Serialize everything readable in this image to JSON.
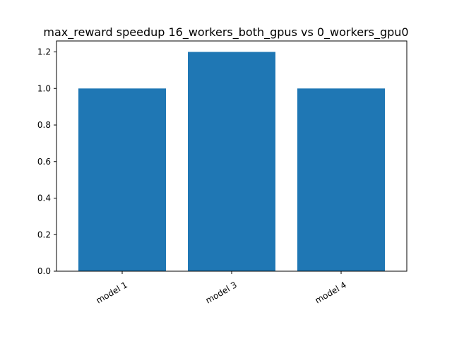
{
  "chart_data": {
    "type": "bar",
    "title": "max_reward speedup 16_workers_both_gpus vs 0_workers_gpu0",
    "xlabel": "",
    "ylabel": "",
    "categories": [
      "model 1",
      "model 3",
      "model 4"
    ],
    "values": [
      1.0,
      1.2,
      1.0
    ],
    "ylim": [
      0,
      1.26
    ],
    "yticks": [
      "0.0",
      "0.2",
      "0.4",
      "0.6",
      "0.8",
      "1.0",
      "1.2"
    ],
    "grid": false,
    "bar_color": "#1f77b4"
  }
}
